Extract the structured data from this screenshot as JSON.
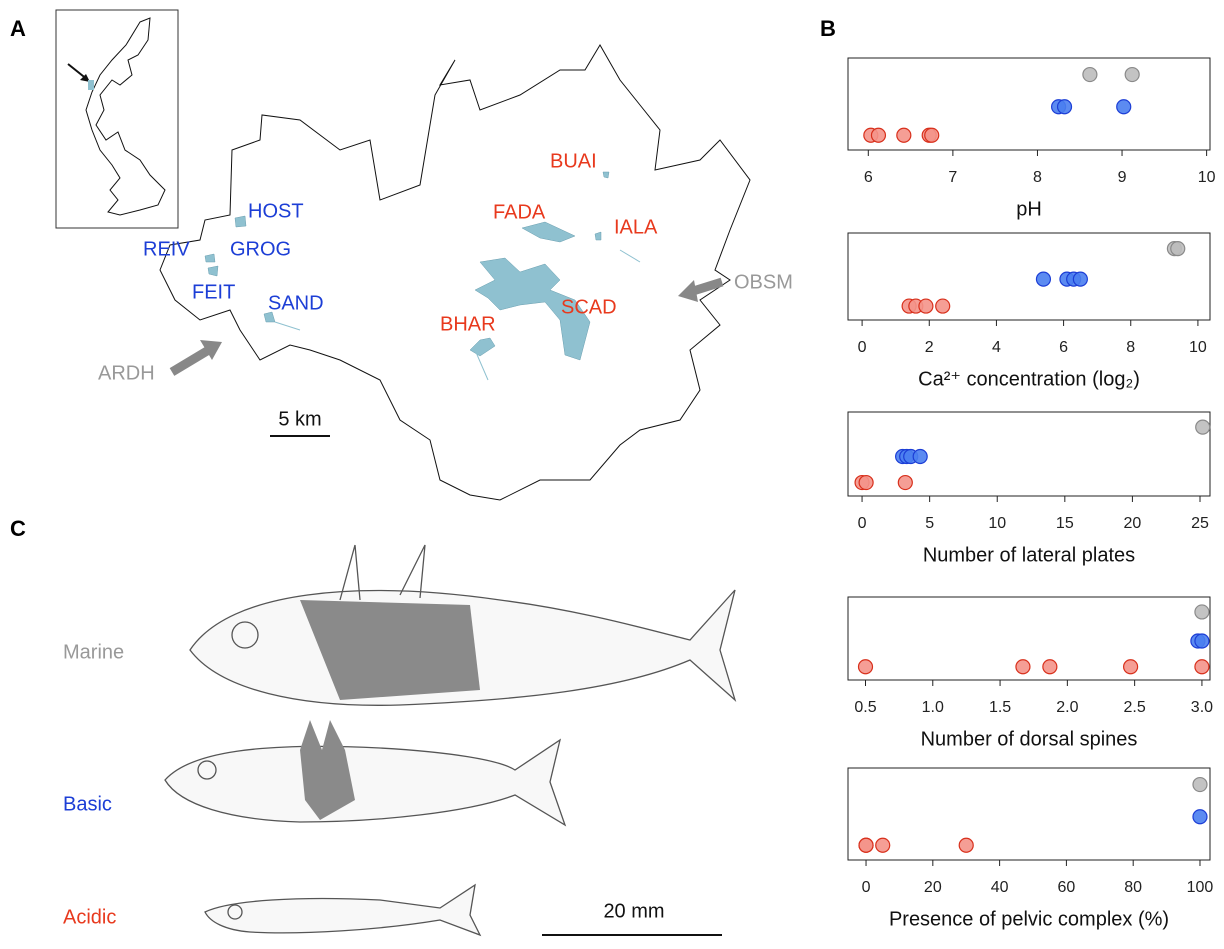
{
  "panel_labels": [
    "A",
    "B",
    "C"
  ],
  "map": {
    "sites": [
      {
        "label": "HOST",
        "color": "#1c3ed6"
      },
      {
        "label": "REIV",
        "color": "#1c3ed6"
      },
      {
        "label": "GROG",
        "color": "#1c3ed6"
      },
      {
        "label": "FEIT",
        "color": "#1c3ed6"
      },
      {
        "label": "SAND",
        "color": "#1c3ed6"
      },
      {
        "label": "BUAI",
        "color": "#e8391d"
      },
      {
        "label": "FADA",
        "color": "#e8391d"
      },
      {
        "label": "IALA",
        "color": "#e8391d"
      },
      {
        "label": "SCAD",
        "color": "#e8391d"
      },
      {
        "label": "BHAR",
        "color": "#e8391d"
      },
      {
        "label": "OBSM",
        "color": "#999999"
      },
      {
        "label": "ARDH",
        "color": "#999999"
      }
    ],
    "scale_bar": "5 km"
  },
  "fish": {
    "labels": [
      {
        "label": "Marine",
        "color": "#999999"
      },
      {
        "label": "Basic",
        "color": "#1c3ed6"
      },
      {
        "label": "Acidic",
        "color": "#e8391d"
      }
    ],
    "scale_bar": "20 mm"
  },
  "chart_data": [
    {
      "type": "scatter",
      "x_label": "pH",
      "xlim": [
        5.76,
        10.04
      ],
      "xticks": [
        6,
        7,
        8,
        9,
        10
      ],
      "series": [
        {
          "color": "#bdbdbd",
          "values": [
            8.62,
            9.12
          ]
        },
        {
          "color": "#4a7ef0",
          "values": [
            8.25,
            8.32,
            9.02
          ]
        },
        {
          "color": "#f4948a",
          "values": [
            6.03,
            6.12,
            6.42,
            6.72,
            6.75
          ]
        }
      ]
    },
    {
      "type": "scatter",
      "x_label": "Ca²⁺ concentration (log₂)",
      "xlim": [
        -0.42,
        10.36
      ],
      "xticks": [
        0,
        2,
        4,
        6,
        8,
        10
      ],
      "series": [
        {
          "color": "#bdbdbd",
          "values": [
            9.3,
            9.4
          ]
        },
        {
          "color": "#4a7ef0",
          "values": [
            5.4,
            6.1,
            6.3,
            6.5
          ]
        },
        {
          "color": "#f4948a",
          "values": [
            1.4,
            1.6,
            1.9,
            2.4
          ]
        }
      ]
    },
    {
      "type": "scatter",
      "x_label": "Number of lateral plates",
      "xlim": [
        -1.04,
        25.74
      ],
      "xticks": [
        0,
        5,
        10,
        15,
        20,
        25
      ],
      "series": [
        {
          "color": "#bdbdbd",
          "values": [
            25.2
          ]
        },
        {
          "color": "#4a7ef0",
          "values": [
            3.0,
            3.3,
            3.6,
            4.3
          ]
        },
        {
          "color": "#f4948a",
          "values": [
            0,
            0.3,
            3.2
          ]
        }
      ]
    },
    {
      "type": "scatter",
      "x_label": "Number of dorsal spines",
      "xlim": [
        0.37,
        3.06
      ],
      "xticks": [
        0.5,
        {
          "value": 1,
          "label": "1.0"
        },
        1.5,
        {
          "value": 2,
          "label": "2.0"
        },
        2.5,
        {
          "value": 3,
          "label": "3.0"
        }
      ],
      "series": [
        {
          "color": "#bdbdbd",
          "values": [
            3.0
          ]
        },
        {
          "color": "#4a7ef0",
          "values": [
            2.97,
            3.0
          ]
        },
        {
          "color": "#f4948a",
          "values": [
            0.5,
            1.67,
            1.87,
            2.47,
            3.0
          ]
        }
      ]
    },
    {
      "type": "scatter",
      "x_label": "Presence of pelvic complex (%)",
      "xlim": [
        -5.4,
        103
      ],
      "xticks": [
        0,
        20,
        40,
        60,
        80,
        100
      ],
      "series": [
        {
          "color": "#bdbdbd",
          "values": [
            100
          ]
        },
        {
          "color": "#4a7ef0",
          "values": [
            100
          ]
        },
        {
          "color": "#f4948a",
          "values": [
            0,
            5,
            30,
            0
          ]
        }
      ]
    }
  ]
}
